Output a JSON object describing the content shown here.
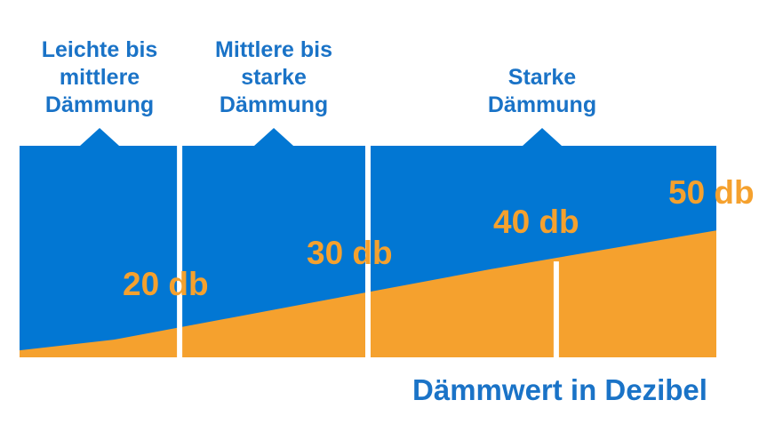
{
  "chart_data": {
    "type": "area",
    "title": "",
    "xlabel": "Dämmwert in Dezibel",
    "ylabel": "",
    "x_range": [
      15,
      52
    ],
    "ylim": [
      0,
      60
    ],
    "grid": false,
    "legend": "none",
    "categories": [
      {
        "label": [
          "Leichte bis",
          "mittlere",
          "Dämmung"
        ],
        "from": 15,
        "to": 23.5
      },
      {
        "label": [
          "Mittlere bis",
          "starke",
          "Dämmung"
        ],
        "from": 23.5,
        "to": 33.5
      },
      {
        "label": [
          "Starke",
          "Dämmung"
        ],
        "from": 33.5,
        "to": 52
      }
    ],
    "series": [
      {
        "x": [
          15,
          20,
          30,
          40,
          52
        ],
        "y": [
          2,
          5,
          15,
          25,
          36
        ]
      }
    ],
    "value_labels": [
      {
        "x": 20,
        "text": "20 db"
      },
      {
        "x": 30,
        "text": "30 db"
      },
      {
        "x": 40,
        "text": "40 db"
      },
      {
        "x": 50,
        "text": "50 db"
      }
    ],
    "extra_dividers": [
      43.5
    ],
    "colors": {
      "band": "#0277d3",
      "area": "#f5a12e",
      "label": "#1a73c7",
      "value": "#f5a12e"
    }
  }
}
